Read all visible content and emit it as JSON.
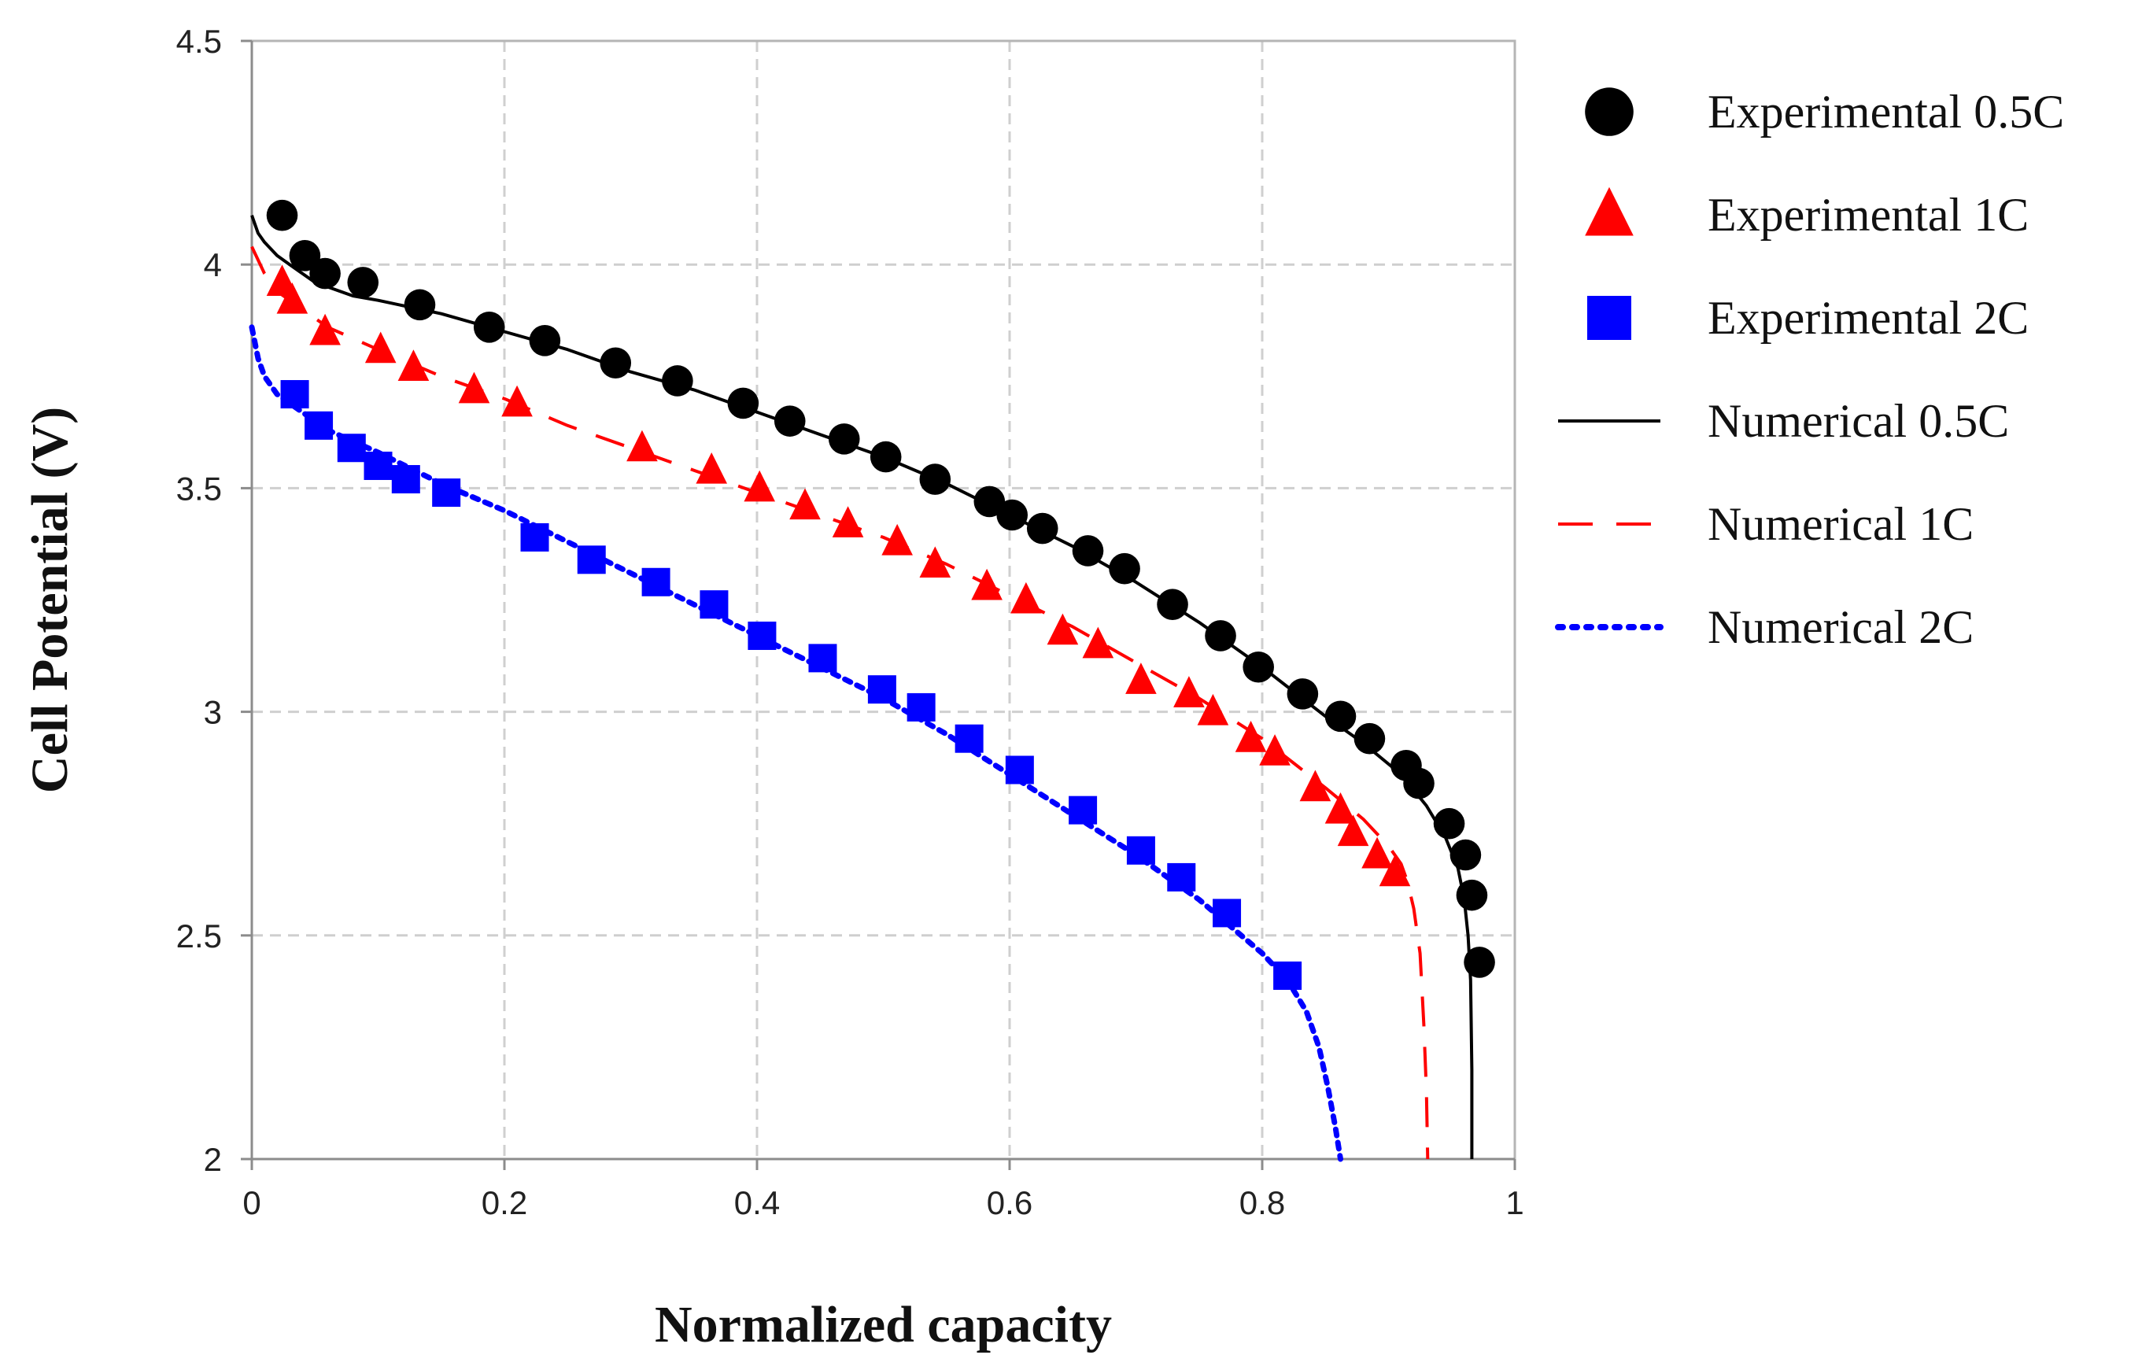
{
  "chart_data": {
    "type": "scatter",
    "title": "",
    "xlabel": "Normalized capacity",
    "ylabel": "Cell Potential (V)",
    "xlim": [
      0,
      1
    ],
    "ylim": [
      2,
      4.5
    ],
    "xticks": [
      0,
      0.2,
      0.4,
      0.6,
      0.8,
      1
    ],
    "xtick_labels": [
      "0",
      "0.2",
      "0.4",
      "0.6",
      "0.8",
      "1"
    ],
    "yticks": [
      2,
      2.5,
      3,
      3.5,
      4,
      4.5
    ],
    "ytick_labels": [
      "2",
      "2.5",
      "3",
      "3.5",
      "4",
      "4.5"
    ],
    "grid": true,
    "legend_position": "right",
    "series": [
      {
        "name": "Experimental 0.5C",
        "kind": "markers",
        "marker": "circle",
        "color": "#000000",
        "x": [
          0.024,
          0.042,
          0.058,
          0.088,
          0.133,
          0.188,
          0.232,
          0.288,
          0.337,
          0.389,
          0.426,
          0.469,
          0.502,
          0.541,
          0.584,
          0.602,
          0.626,
          0.662,
          0.691,
          0.729,
          0.767,
          0.797,
          0.832,
          0.862,
          0.885,
          0.914,
          0.924,
          0.948,
          0.961,
          0.966,
          0.972
        ],
        "y": [
          4.11,
          4.02,
          3.98,
          3.96,
          3.91,
          3.86,
          3.83,
          3.78,
          3.74,
          3.69,
          3.65,
          3.61,
          3.57,
          3.52,
          3.47,
          3.44,
          3.41,
          3.36,
          3.32,
          3.24,
          3.17,
          3.1,
          3.04,
          2.99,
          2.94,
          2.88,
          2.84,
          2.75,
          2.68,
          2.59,
          2.44
        ]
      },
      {
        "name": "Experimental 1C",
        "kind": "markers",
        "marker": "triangle",
        "color": "#ff0000",
        "x": [
          0.024,
          0.032,
          0.058,
          0.102,
          0.128,
          0.176,
          0.21,
          0.309,
          0.364,
          0.402,
          0.438,
          0.472,
          0.511,
          0.541,
          0.582,
          0.613,
          0.642,
          0.67,
          0.704,
          0.742,
          0.761,
          0.791,
          0.81,
          0.842,
          0.862,
          0.872,
          0.891,
          0.905
        ],
        "y": [
          3.96,
          3.92,
          3.85,
          3.81,
          3.77,
          3.72,
          3.69,
          3.59,
          3.54,
          3.5,
          3.46,
          3.42,
          3.38,
          3.33,
          3.28,
          3.25,
          3.18,
          3.15,
          3.07,
          3.04,
          3.0,
          2.94,
          2.91,
          2.83,
          2.78,
          2.73,
          2.68,
          2.64
        ]
      },
      {
        "name": "Experimental 2C",
        "kind": "markers",
        "marker": "square",
        "color": "#0000ff",
        "x": [
          0.034,
          0.053,
          0.079,
          0.1,
          0.122,
          0.154,
          0.224,
          0.269,
          0.32,
          0.366,
          0.404,
          0.452,
          0.499,
          0.53,
          0.568,
          0.608,
          0.658,
          0.704,
          0.736,
          0.772,
          0.82
        ],
        "y": [
          3.71,
          3.64,
          3.59,
          3.55,
          3.52,
          3.49,
          3.39,
          3.34,
          3.29,
          3.24,
          3.17,
          3.12,
          3.05,
          3.01,
          2.94,
          2.87,
          2.78,
          2.69,
          2.63,
          2.55,
          2.41
        ]
      },
      {
        "name": "Numerical 0.5C",
        "kind": "line",
        "dash": "solid",
        "color": "#000000",
        "x": [
          0.0,
          0.005,
          0.01,
          0.02,
          0.03,
          0.05,
          0.08,
          0.1,
          0.15,
          0.2,
          0.25,
          0.3,
          0.35,
          0.4,
          0.45,
          0.5,
          0.55,
          0.6,
          0.65,
          0.7,
          0.75,
          0.8,
          0.85,
          0.88,
          0.91,
          0.93,
          0.945,
          0.955,
          0.96,
          0.963,
          0.965,
          0.966,
          0.966
        ],
        "y": [
          4.11,
          4.07,
          4.05,
          4.02,
          4.0,
          3.96,
          3.93,
          3.92,
          3.89,
          3.85,
          3.81,
          3.76,
          3.72,
          3.67,
          3.62,
          3.57,
          3.51,
          3.44,
          3.37,
          3.29,
          3.2,
          3.1,
          2.99,
          2.93,
          2.86,
          2.79,
          2.72,
          2.65,
          2.58,
          2.5,
          2.4,
          2.2,
          2.0
        ]
      },
      {
        "name": "Numerical 1C",
        "kind": "line",
        "dash": "dashed",
        "color": "#ff0000",
        "x": [
          0.0,
          0.01,
          0.02,
          0.04,
          0.06,
          0.1,
          0.15,
          0.2,
          0.25,
          0.3,
          0.35,
          0.4,
          0.45,
          0.5,
          0.55,
          0.6,
          0.65,
          0.7,
          0.75,
          0.8,
          0.85,
          0.88,
          0.9,
          0.91,
          0.915,
          0.92,
          0.925,
          0.928,
          0.93,
          0.931
        ],
        "y": [
          4.04,
          3.98,
          3.94,
          3.9,
          3.86,
          3.81,
          3.75,
          3.7,
          3.64,
          3.59,
          3.54,
          3.49,
          3.44,
          3.39,
          3.33,
          3.26,
          3.19,
          3.11,
          3.03,
          2.94,
          2.83,
          2.76,
          2.7,
          2.66,
          2.62,
          2.56,
          2.46,
          2.3,
          2.15,
          2.0
        ]
      },
      {
        "name": "Numerical 2C",
        "kind": "line",
        "dash": "dotted",
        "color": "#0000ff",
        "x": [
          0.0,
          0.005,
          0.01,
          0.02,
          0.04,
          0.06,
          0.1,
          0.15,
          0.2,
          0.25,
          0.3,
          0.35,
          0.4,
          0.45,
          0.5,
          0.55,
          0.6,
          0.65,
          0.7,
          0.75,
          0.8,
          0.82,
          0.835,
          0.845,
          0.852,
          0.858,
          0.862
        ],
        "y": [
          3.86,
          3.79,
          3.75,
          3.71,
          3.67,
          3.63,
          3.58,
          3.51,
          3.45,
          3.38,
          3.31,
          3.24,
          3.17,
          3.1,
          3.03,
          2.95,
          2.86,
          2.77,
          2.68,
          2.58,
          2.46,
          2.4,
          2.33,
          2.25,
          2.16,
          2.07,
          2.0
        ]
      }
    ]
  }
}
